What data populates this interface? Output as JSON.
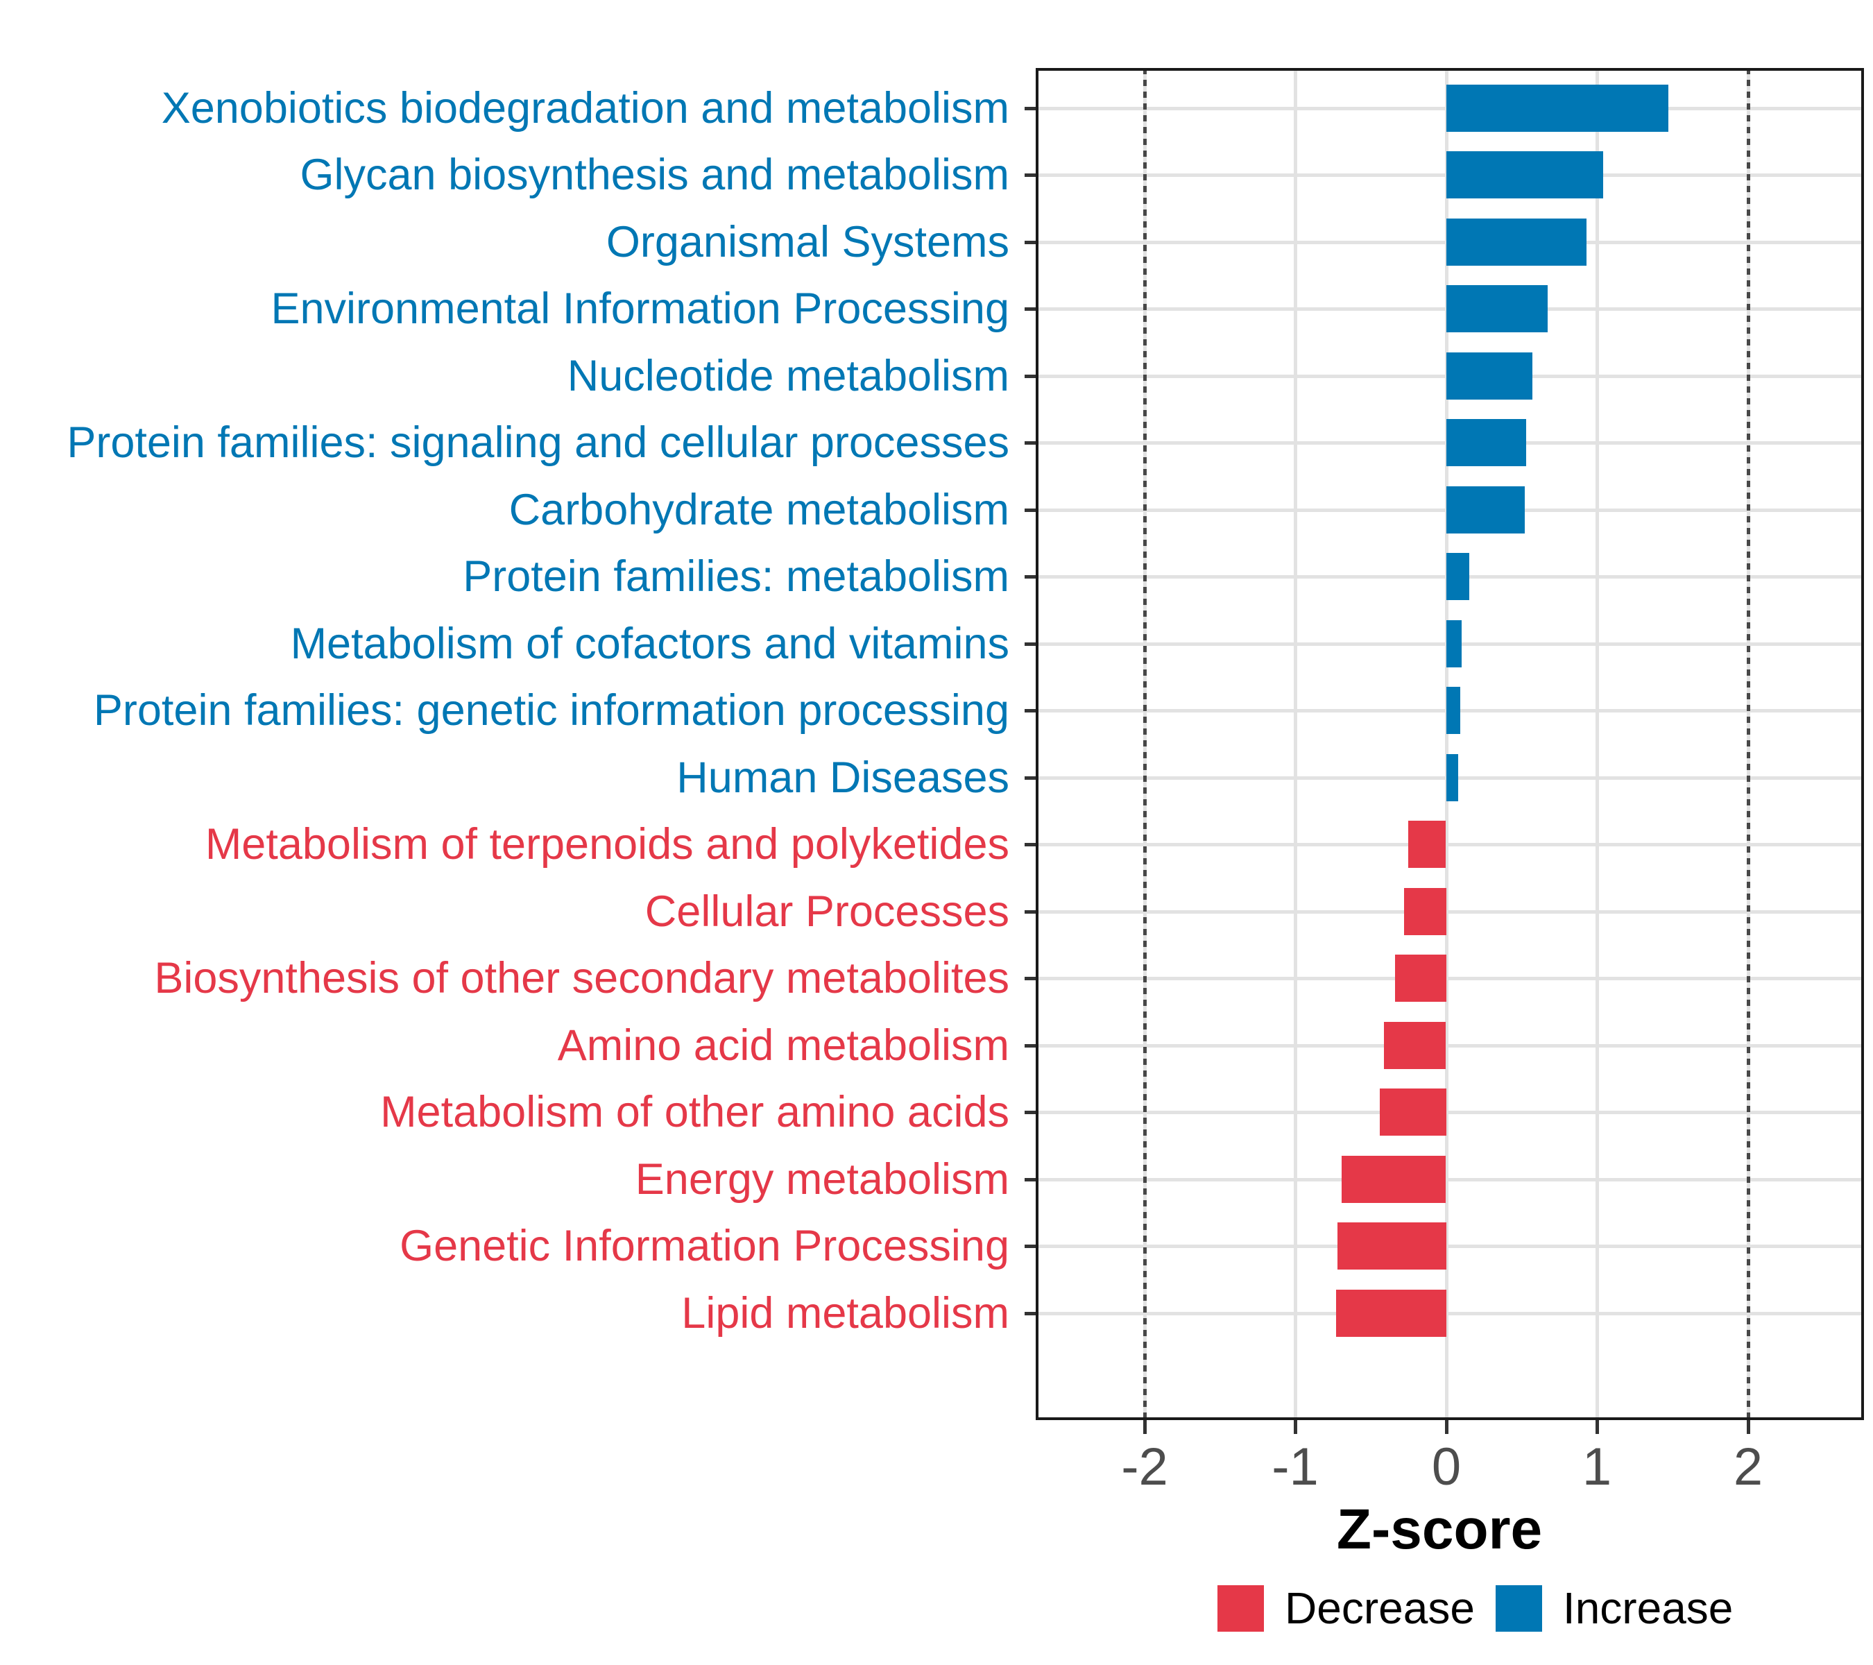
{
  "chart_data": {
    "type": "bar",
    "orientation": "horizontal",
    "title": "",
    "xlabel": "Z-score",
    "categories": [
      "Xenobiotics biodegradation and metabolism",
      "Glycan biosynthesis and metabolism",
      "Organismal Systems",
      "Environmental Information Processing",
      "Nucleotide metabolism",
      "Protein families: signaling and cellular processes",
      "Carbohydrate metabolism",
      "Protein families: metabolism",
      "Metabolism of cofactors and vitamins",
      "Protein families: genetic information processing",
      "Human Diseases",
      "Metabolism of terpenoids and polyketides",
      "Cellular Processes",
      "Biosynthesis of other secondary metabolites",
      "Amino acid metabolism",
      "Metabolism of other amino acids",
      "Energy metabolism",
      "Genetic Information Processing",
      "Lipid metabolism"
    ],
    "values": [
      1.47,
      1.04,
      0.93,
      0.67,
      0.57,
      0.53,
      0.52,
      0.15,
      0.1,
      0.09,
      0.08,
      -0.25,
      -0.28,
      -0.34,
      -0.41,
      -0.44,
      -0.69,
      -0.72,
      -0.73
    ],
    "directions": [
      "Increase",
      "Increase",
      "Increase",
      "Increase",
      "Increase",
      "Increase",
      "Increase",
      "Increase",
      "Increase",
      "Increase",
      "Increase",
      "Decrease",
      "Decrease",
      "Decrease",
      "Decrease",
      "Decrease",
      "Decrease",
      "Decrease",
      "Decrease"
    ],
    "xlim": [
      -2.72,
      2.77
    ],
    "x_ticks": [
      -2,
      -1,
      0,
      1,
      2
    ],
    "x_tick_labels": [
      "-2",
      "-1",
      "0",
      "1",
      "2"
    ],
    "cutoff_lines": [
      -2,
      2
    ],
    "grid": true,
    "legend": {
      "position": "bottom",
      "entries": [
        {
          "label": "Decrease",
          "color": "#E53848"
        },
        {
          "label": "Increase",
          "color": "#0077B4"
        }
      ]
    }
  },
  "colors": {
    "increase": "#0077B4",
    "decrease": "#E53848",
    "gridline": "#E2E2E2",
    "cutoff": "#474747",
    "axis_text": "#4D4D4D",
    "tick": "#333333",
    "border": "#1A1A1A",
    "background": "#FFFFFF"
  }
}
